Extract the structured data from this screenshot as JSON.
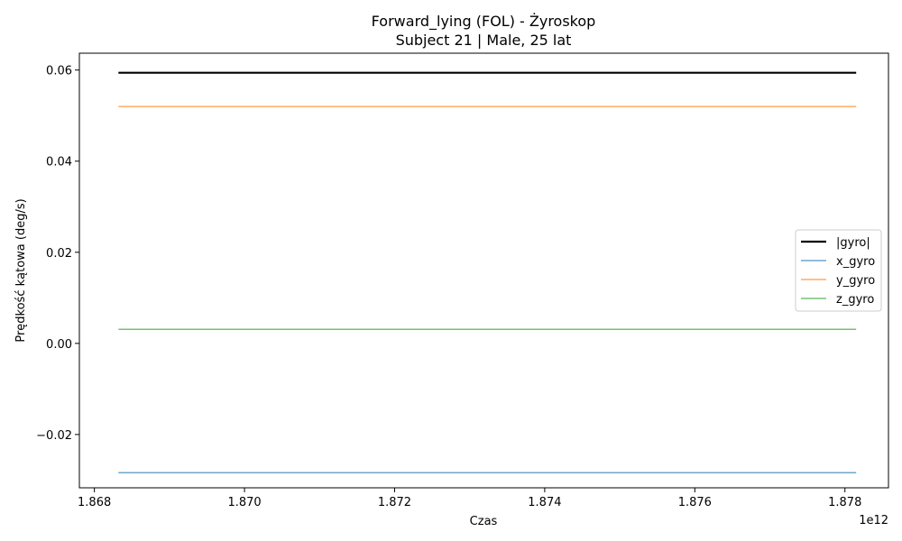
{
  "chart_data": {
    "type": "line",
    "title": "Forward_lying (FOL) - Żyroskop",
    "subtitle": "Subject 21 | Male, 25 lat",
    "xlabel": "Czas",
    "ylabel": "Prędkość kątowa (deg/s)",
    "x_offset_label": "1e12",
    "xlim": [
      1.8678,
      1.87858
    ],
    "ylim": [
      -0.0317,
      0.0637
    ],
    "x_ticks": [
      1.868,
      1.87,
      1.872,
      1.874,
      1.876,
      1.878
    ],
    "x_tick_labels": [
      "1.868",
      "1.870",
      "1.872",
      "1.874",
      "1.876",
      "1.878"
    ],
    "y_ticks": [
      -0.02,
      0.0,
      0.02,
      0.04,
      0.06
    ],
    "y_tick_labels": [
      "−0.02",
      "0.00",
      "0.02",
      "0.04",
      "0.06"
    ],
    "legend_position": "center-right",
    "x": [
      1.86832,
      1.87815
    ],
    "series": [
      {
        "name": "|gyro|",
        "values": [
          0.0594,
          0.0594
        ],
        "color": "#000000",
        "width": 2.2,
        "opacity": 1
      },
      {
        "name": "x_gyro",
        "values": [
          -0.0284,
          -0.0284
        ],
        "color": "#1f77b4",
        "width": 1.5,
        "opacity": 0.65
      },
      {
        "name": "y_gyro",
        "values": [
          0.052,
          0.052
        ],
        "color": "#ff7f0e",
        "width": 1.5,
        "opacity": 0.65
      },
      {
        "name": "z_gyro",
        "values": [
          0.0031,
          0.0031
        ],
        "color": "#2ca02c",
        "width": 1.5,
        "opacity": 0.65
      }
    ]
  }
}
